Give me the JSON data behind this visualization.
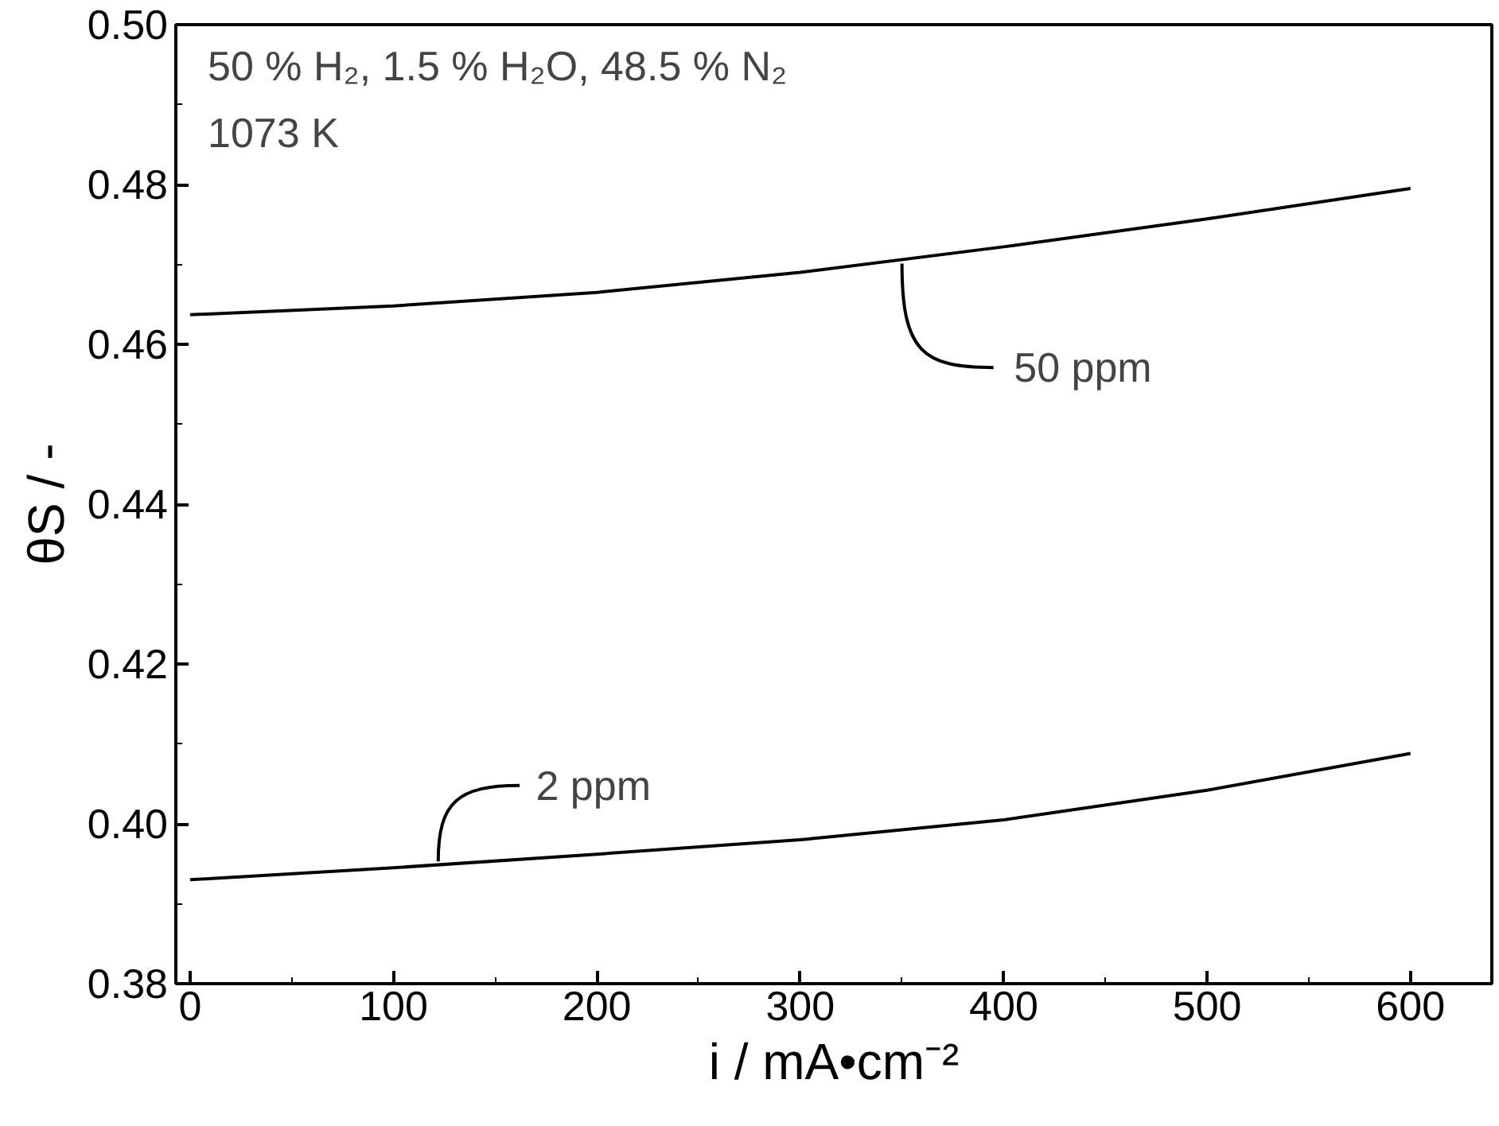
{
  "chart_data": {
    "type": "line",
    "x": [
      0,
      100,
      200,
      300,
      400,
      500,
      600
    ],
    "series": [
      {
        "name": "50 ppm",
        "color": "#000000",
        "values": [
          0.4637,
          0.4648,
          0.4665,
          0.469,
          0.4722,
          0.4757,
          0.4795
        ]
      },
      {
        "name": "2 ppm",
        "color": "#000000",
        "values": [
          0.393,
          0.3945,
          0.3962,
          0.398,
          0.4005,
          0.4042,
          0.4088
        ]
      }
    ],
    "xlabel": "i / mA•cm⁻²",
    "ylabel": "θS / -",
    "annotations": [
      "50 % H₂, 1.5 % H₂O, 48.5 % N₂",
      "1073 K"
    ],
    "xlim": [
      -7,
      640
    ],
    "ylim": [
      0.38,
      0.5
    ],
    "xticks": [
      0,
      100,
      200,
      300,
      400,
      500,
      600
    ],
    "yticks": [
      {
        "value": 0.38,
        "label": "0.38"
      },
      {
        "value": 0.4,
        "label": "0.40"
      },
      {
        "value": 0.42,
        "label": "0.42"
      },
      {
        "value": 0.44,
        "label": "0.44"
      },
      {
        "value": 0.46,
        "label": "0.46"
      },
      {
        "value": 0.48,
        "label": "0.48"
      },
      {
        "value": 0.5,
        "label": "0.50"
      }
    ],
    "grid": false,
    "marker": "none",
    "line_style": "solid"
  }
}
